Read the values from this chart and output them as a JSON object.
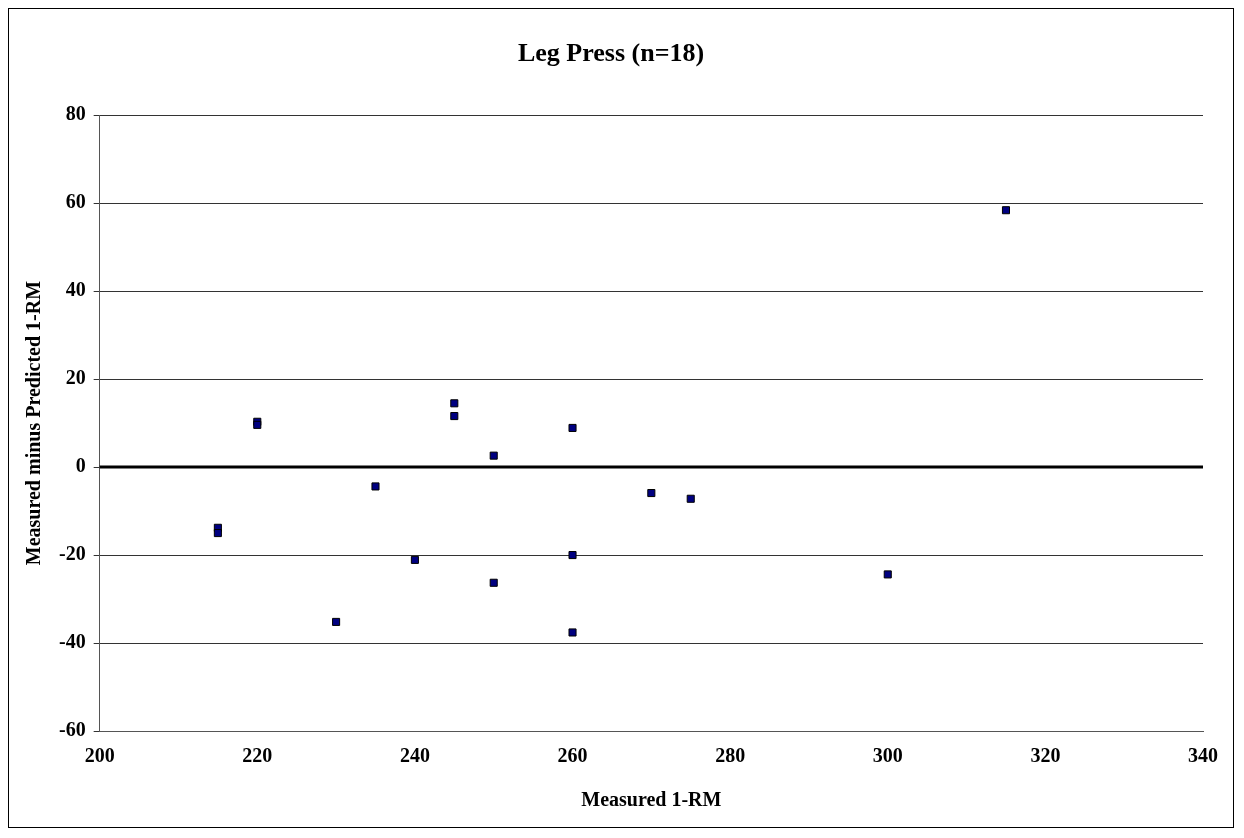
{
  "chart_data": {
    "type": "scatter",
    "title": "Leg Press (n=18)",
    "xlabel": "Measured 1-RM",
    "ylabel": "Measured minus Predicted 1-RM",
    "x": [
      215,
      215,
      220,
      220,
      230,
      235,
      240,
      245,
      245,
      250,
      250,
      260,
      260,
      260,
      270,
      275,
      300,
      315
    ],
    "series": [
      {
        "color": "#000080",
        "values": [
          -13.8,
          -15.0,
          10.3,
          9.6,
          -35.2,
          -4.4,
          -21.1,
          14.5,
          11.6,
          2.6,
          -26.3,
          8.9,
          -20.0,
          -37.6,
          -5.9,
          -7.2,
          -24.4,
          58.4
        ]
      }
    ],
    "xlim": [
      200,
      340
    ],
    "xticks": [
      200,
      220,
      240,
      260,
      280,
      300,
      320,
      340
    ],
    "ylim": [
      -60,
      80
    ],
    "yticks": [
      -60,
      -40,
      -20,
      0,
      20,
      40,
      60,
      80
    ],
    "ref_lines": [
      {
        "axis": "y",
        "value": 0,
        "color": "#000000"
      }
    ],
    "grid": "y",
    "legend": false,
    "marker": "square"
  }
}
